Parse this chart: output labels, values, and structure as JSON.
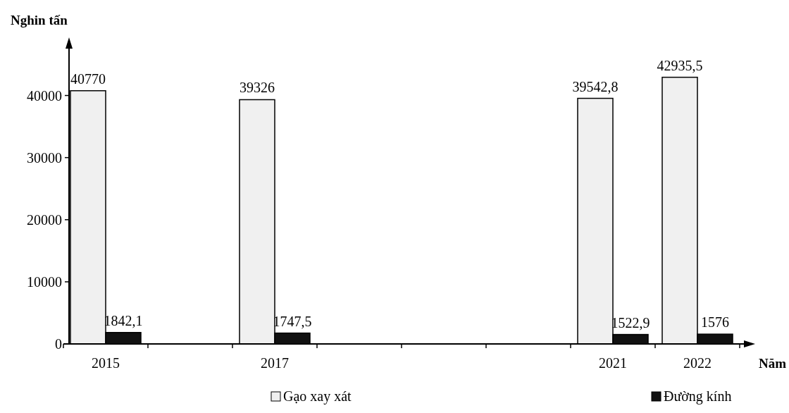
{
  "chart_data": {
    "type": "bar",
    "ylabel": "Nghin tấn",
    "xlabel": "Năm",
    "categories": [
      "2015",
      null,
      "2017",
      null,
      null,
      null,
      "2021",
      "2022"
    ],
    "series": [
      {
        "name": "Gạo xay xát",
        "color": "#f0f0f0",
        "values": [
          40770,
          null,
          39326,
          null,
          null,
          null,
          39542.8,
          42935.5
        ],
        "value_labels": [
          "40770",
          null,
          "39326",
          null,
          null,
          null,
          "39542,8",
          "42935,5"
        ]
      },
      {
        "name": "Đường kính",
        "color": "#111111",
        "values": [
          1842.1,
          null,
          1747.5,
          null,
          null,
          null,
          1522.9,
          1576
        ],
        "value_labels": [
          "1842,1",
          null,
          "1747,5",
          null,
          null,
          null,
          "1522,9",
          "1576"
        ]
      }
    ],
    "ylim": [
      0,
      48000
    ],
    "yticks": [
      0,
      10000,
      20000,
      30000,
      40000
    ],
    "grid": false,
    "legend": "bottom"
  }
}
